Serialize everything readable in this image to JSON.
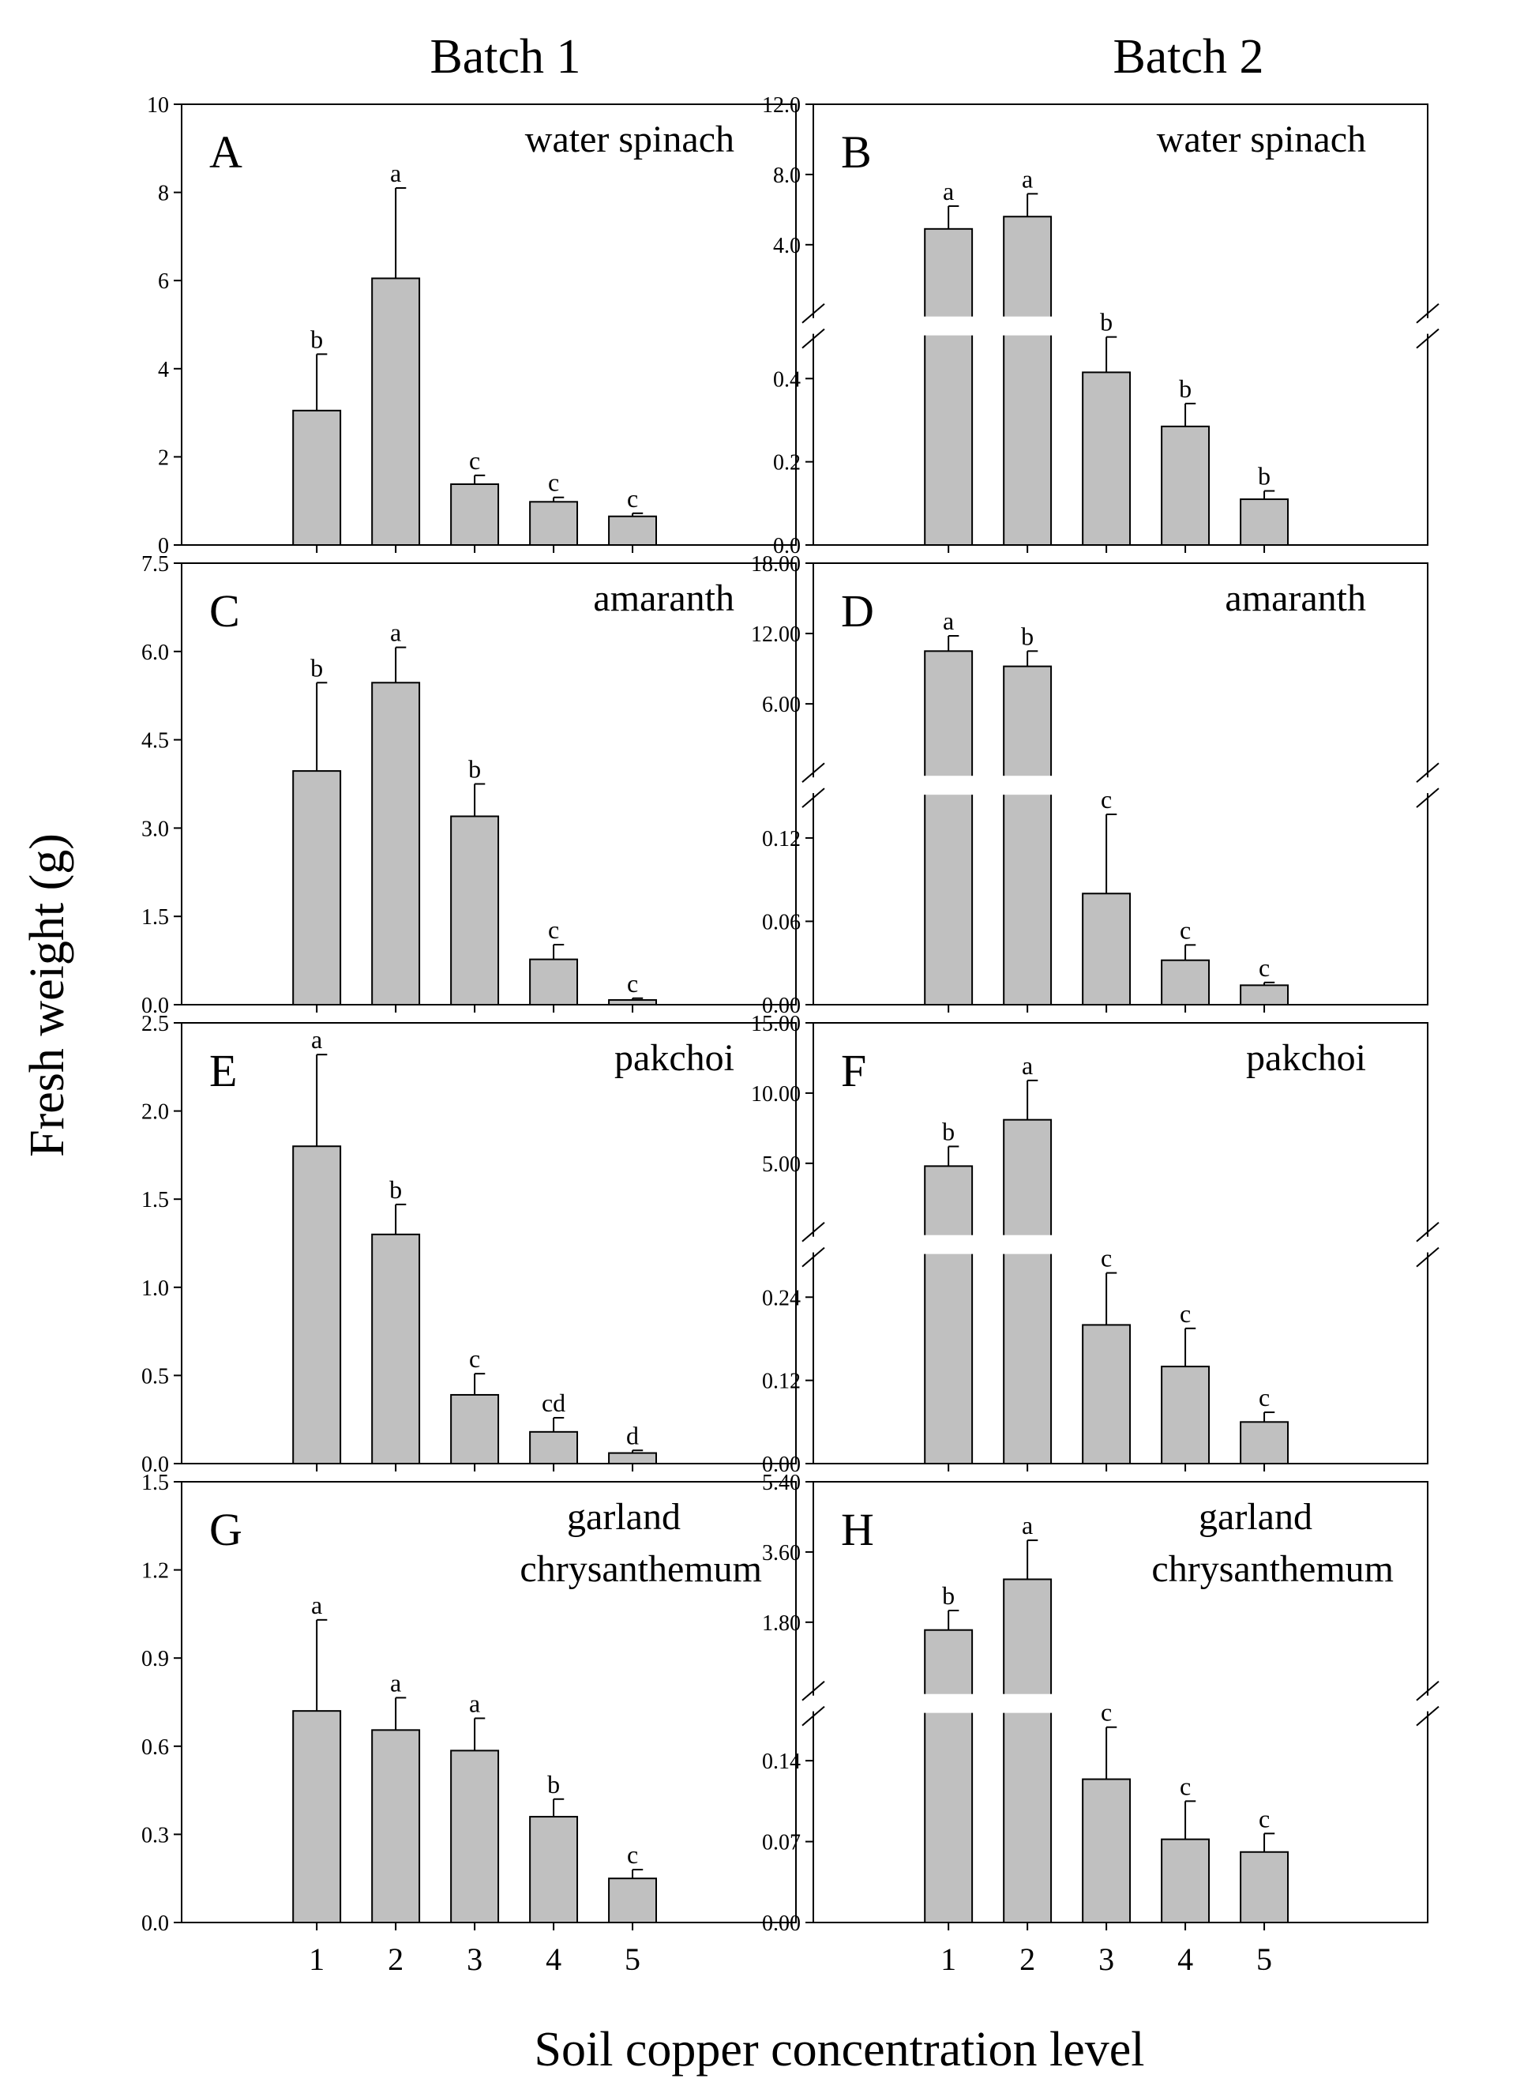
{
  "figure": {
    "batch_titles": [
      "Batch 1",
      "Batch 2"
    ],
    "ylabel": "Fresh weight (g)",
    "xlabel": "Soil copper concentration level",
    "x_ticks": [
      "1",
      "2",
      "3",
      "4",
      "5"
    ]
  },
  "colors": {
    "bar_fill": "#c0c0c0",
    "stroke": "#000000",
    "background": "#ffffff"
  },
  "chart_data": [
    {
      "type": "bar",
      "panel": "A",
      "species": [
        "water spinach"
      ],
      "batch": "Batch 1",
      "categories": [
        "1",
        "2",
        "3",
        "4",
        "5"
      ],
      "values": [
        3.05,
        6.05,
        1.38,
        0.98,
        0.65
      ],
      "errors": [
        1.28,
        2.05,
        0.2,
        0.1,
        0.07
      ],
      "letters": [
        "b",
        "a",
        "c",
        "c",
        "c"
      ],
      "ylim": [
        0,
        10
      ],
      "yticks": [
        "0",
        "2",
        "4",
        "6",
        "8",
        "10"
      ]
    },
    {
      "type": "bar",
      "panel": "B",
      "species": [
        "water spinach"
      ],
      "batch": "Batch 2",
      "broken_axis": true,
      "categories": [
        "1",
        "2",
        "3",
        "4",
        "5"
      ],
      "values": [
        4.9,
        5.6,
        0.415,
        0.285,
        0.11
      ],
      "errors": [
        1.3,
        1.3,
        0.085,
        0.055,
        0.02
      ],
      "letters": [
        "a",
        "a",
        "b",
        "b",
        "b"
      ],
      "lower_ylim": [
        0,
        0.5
      ],
      "upper_ylim": [
        0,
        12
      ],
      "lower_yticks": [
        "0.0",
        "0.2",
        "0.4"
      ],
      "upper_yticks": [
        "4.0",
        "8.0",
        "12.0"
      ]
    },
    {
      "type": "bar",
      "panel": "C",
      "species": [
        "amaranth"
      ],
      "batch": "Batch 1",
      "categories": [
        "1",
        "2",
        "3",
        "4",
        "5"
      ],
      "values": [
        3.97,
        5.47,
        3.2,
        0.77,
        0.08
      ],
      "errors": [
        1.5,
        0.6,
        0.55,
        0.25,
        0.03
      ],
      "letters": [
        "b",
        "a",
        "b",
        "c",
        "c"
      ],
      "ylim": [
        0,
        7.5
      ],
      "yticks": [
        "0.0",
        "1.5",
        "3.0",
        "4.5",
        "6.0",
        "7.5"
      ]
    },
    {
      "type": "bar",
      "panel": "D",
      "species": [
        "amaranth"
      ],
      "batch": "Batch 2",
      "broken_axis": true,
      "categories": [
        "1",
        "2",
        "3",
        "4",
        "5"
      ],
      "values": [
        10.5,
        9.2,
        0.08,
        0.032,
        0.014
      ],
      "errors": [
        1.3,
        1.3,
        0.057,
        0.011,
        0.002
      ],
      "letters": [
        "a",
        "b",
        "c",
        "c",
        "c"
      ],
      "lower_ylim": [
        0,
        0.15
      ],
      "upper_ylim": [
        0,
        18
      ],
      "lower_yticks": [
        "0.00",
        "0.06",
        "0.12"
      ],
      "upper_yticks": [
        "6.00",
        "12.00",
        "18.00"
      ]
    },
    {
      "type": "bar",
      "panel": "E",
      "species": [
        "pakchoi"
      ],
      "batch": "Batch 1",
      "categories": [
        "1",
        "2",
        "3",
        "4",
        "5"
      ],
      "values": [
        1.8,
        1.3,
        0.39,
        0.18,
        0.06
      ],
      "errors": [
        0.52,
        0.17,
        0.12,
        0.08,
        0.015
      ],
      "letters": [
        "a",
        "b",
        "c",
        "cd",
        "d"
      ],
      "ylim": [
        0,
        2.5
      ],
      "yticks": [
        "0.0",
        "0.5",
        "1.0",
        "1.5",
        "2.0",
        "2.5"
      ]
    },
    {
      "type": "bar",
      "panel": "F",
      "species": [
        "pakchoi"
      ],
      "batch": "Batch 2",
      "broken_axis": true,
      "categories": [
        "1",
        "2",
        "3",
        "4",
        "5"
      ],
      "values": [
        4.8,
        8.1,
        0.2,
        0.14,
        0.06
      ],
      "errors": [
        1.4,
        2.8,
        0.075,
        0.055,
        0.014
      ],
      "letters": [
        "b",
        "a",
        "c",
        "c",
        "c"
      ],
      "lower_ylim": [
        0,
        0.3
      ],
      "upper_ylim": [
        0,
        15
      ],
      "lower_yticks": [
        "0.00",
        "0.12",
        "0.24"
      ],
      "upper_yticks": [
        "5.00",
        "10.00",
        "15.00"
      ]
    },
    {
      "type": "bar",
      "panel": "G",
      "species": [
        "garland",
        "chrysanthemum"
      ],
      "batch": "Batch 1",
      "categories": [
        "1",
        "2",
        "3",
        "4",
        "5"
      ],
      "values": [
        0.72,
        0.655,
        0.585,
        0.36,
        0.15
      ],
      "errors": [
        0.31,
        0.11,
        0.11,
        0.06,
        0.03
      ],
      "letters": [
        "a",
        "a",
        "a",
        "b",
        "c"
      ],
      "ylim": [
        0,
        1.5
      ],
      "yticks": [
        "0.0",
        "0.3",
        "0.6",
        "0.9",
        "1.2",
        "1.5"
      ]
    },
    {
      "type": "bar",
      "panel": "H",
      "species": [
        "garland",
        "chrysanthemum"
      ],
      "batch": "Batch 2",
      "broken_axis": true,
      "categories": [
        "1",
        "2",
        "3",
        "4",
        "5"
      ],
      "values": [
        1.6,
        2.9,
        0.124,
        0.072,
        0.061
      ],
      "errors": [
        0.5,
        1.0,
        0.045,
        0.033,
        0.016
      ],
      "letters": [
        "b",
        "a",
        "c",
        "c",
        "c"
      ],
      "lower_ylim": [
        0,
        0.18
      ],
      "upper_ylim": [
        0,
        5.4
      ],
      "lower_yticks": [
        "0.00",
        "0.07",
        "0.14"
      ],
      "upper_yticks": [
        "1.80",
        "3.60",
        "5.40"
      ]
    }
  ]
}
